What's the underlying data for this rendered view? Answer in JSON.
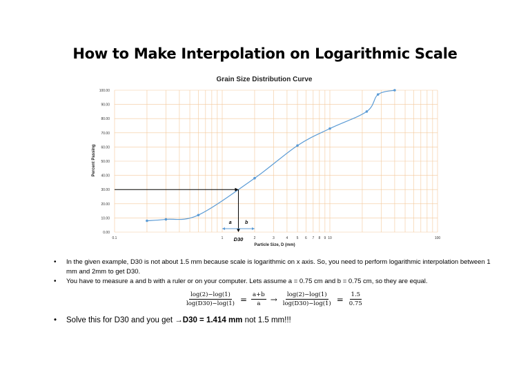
{
  "page": {
    "title": "How to Make Interpolation on Logarithmic Scale"
  },
  "chart_data": {
    "type": "line",
    "title": "Grain Size Distribution Curve",
    "xlabel": "Particle Size, D (mm)",
    "ylabel": "Percent Passing",
    "x_scale": "log",
    "xlim": [
      0.1,
      100
    ],
    "ylim": [
      0,
      100
    ],
    "x_tick_labels": [
      "0.1",
      "1",
      "2",
      "3",
      "4",
      "5",
      "6",
      "7",
      "8",
      "9",
      "10",
      "100"
    ],
    "x_tick_values": [
      0.1,
      1,
      2,
      3,
      4,
      5,
      6,
      7,
      8,
      9,
      10,
      100
    ],
    "y_ticks": [
      "0.00",
      "10.00",
      "20.00",
      "30.00",
      "40.00",
      "50.00",
      "60.00",
      "70.00",
      "80.00",
      "90.00",
      "100.00"
    ],
    "grid": true,
    "line_color": "#5b9bd5",
    "grid_color": "#f3c89a",
    "series": [
      {
        "x": [
          0.2,
          0.3,
          0.6,
          2,
          5,
          10,
          22,
          28,
          40
        ],
        "y": [
          8,
          9,
          12,
          38,
          61,
          73,
          85,
          97,
          100
        ]
      }
    ],
    "annotations": {
      "d30_label": "D30",
      "a_label": "a",
      "b_label": "b",
      "d30_value": 1.414,
      "d30_percent": 30
    }
  },
  "bullets": [
    "In the given example, D30 is not about 1.5 mm because scale is logarithmic on x axis. So, you need to perform logarithmic interpolation between 1 mm and 2mm to get D30.",
    "You have to measure a and b with a ruler or on your computer. Lets assume a = 0.75 cm and b = 0.75 cm, so they are equal."
  ],
  "formula": {
    "f1_num": "log(2)−log(1)",
    "f1_den": "log(D30)−log(1)",
    "eq1": "=",
    "f2_num": "a+b",
    "f2_den": "a",
    "arrow": "→",
    "f3_num": "log(2)−log(1)",
    "f3_den": "log(D30)−log(1)",
    "eq2": "=",
    "f4_num": "1.5",
    "f4_den": "0.75"
  },
  "conclusion": {
    "prefix": "Solve this for D30 and you get ",
    "arrow": "→",
    "result": "D30 = 1.414 mm",
    "suffix": " not 1.5 mm!!!"
  },
  "bullet_symbol": "•"
}
